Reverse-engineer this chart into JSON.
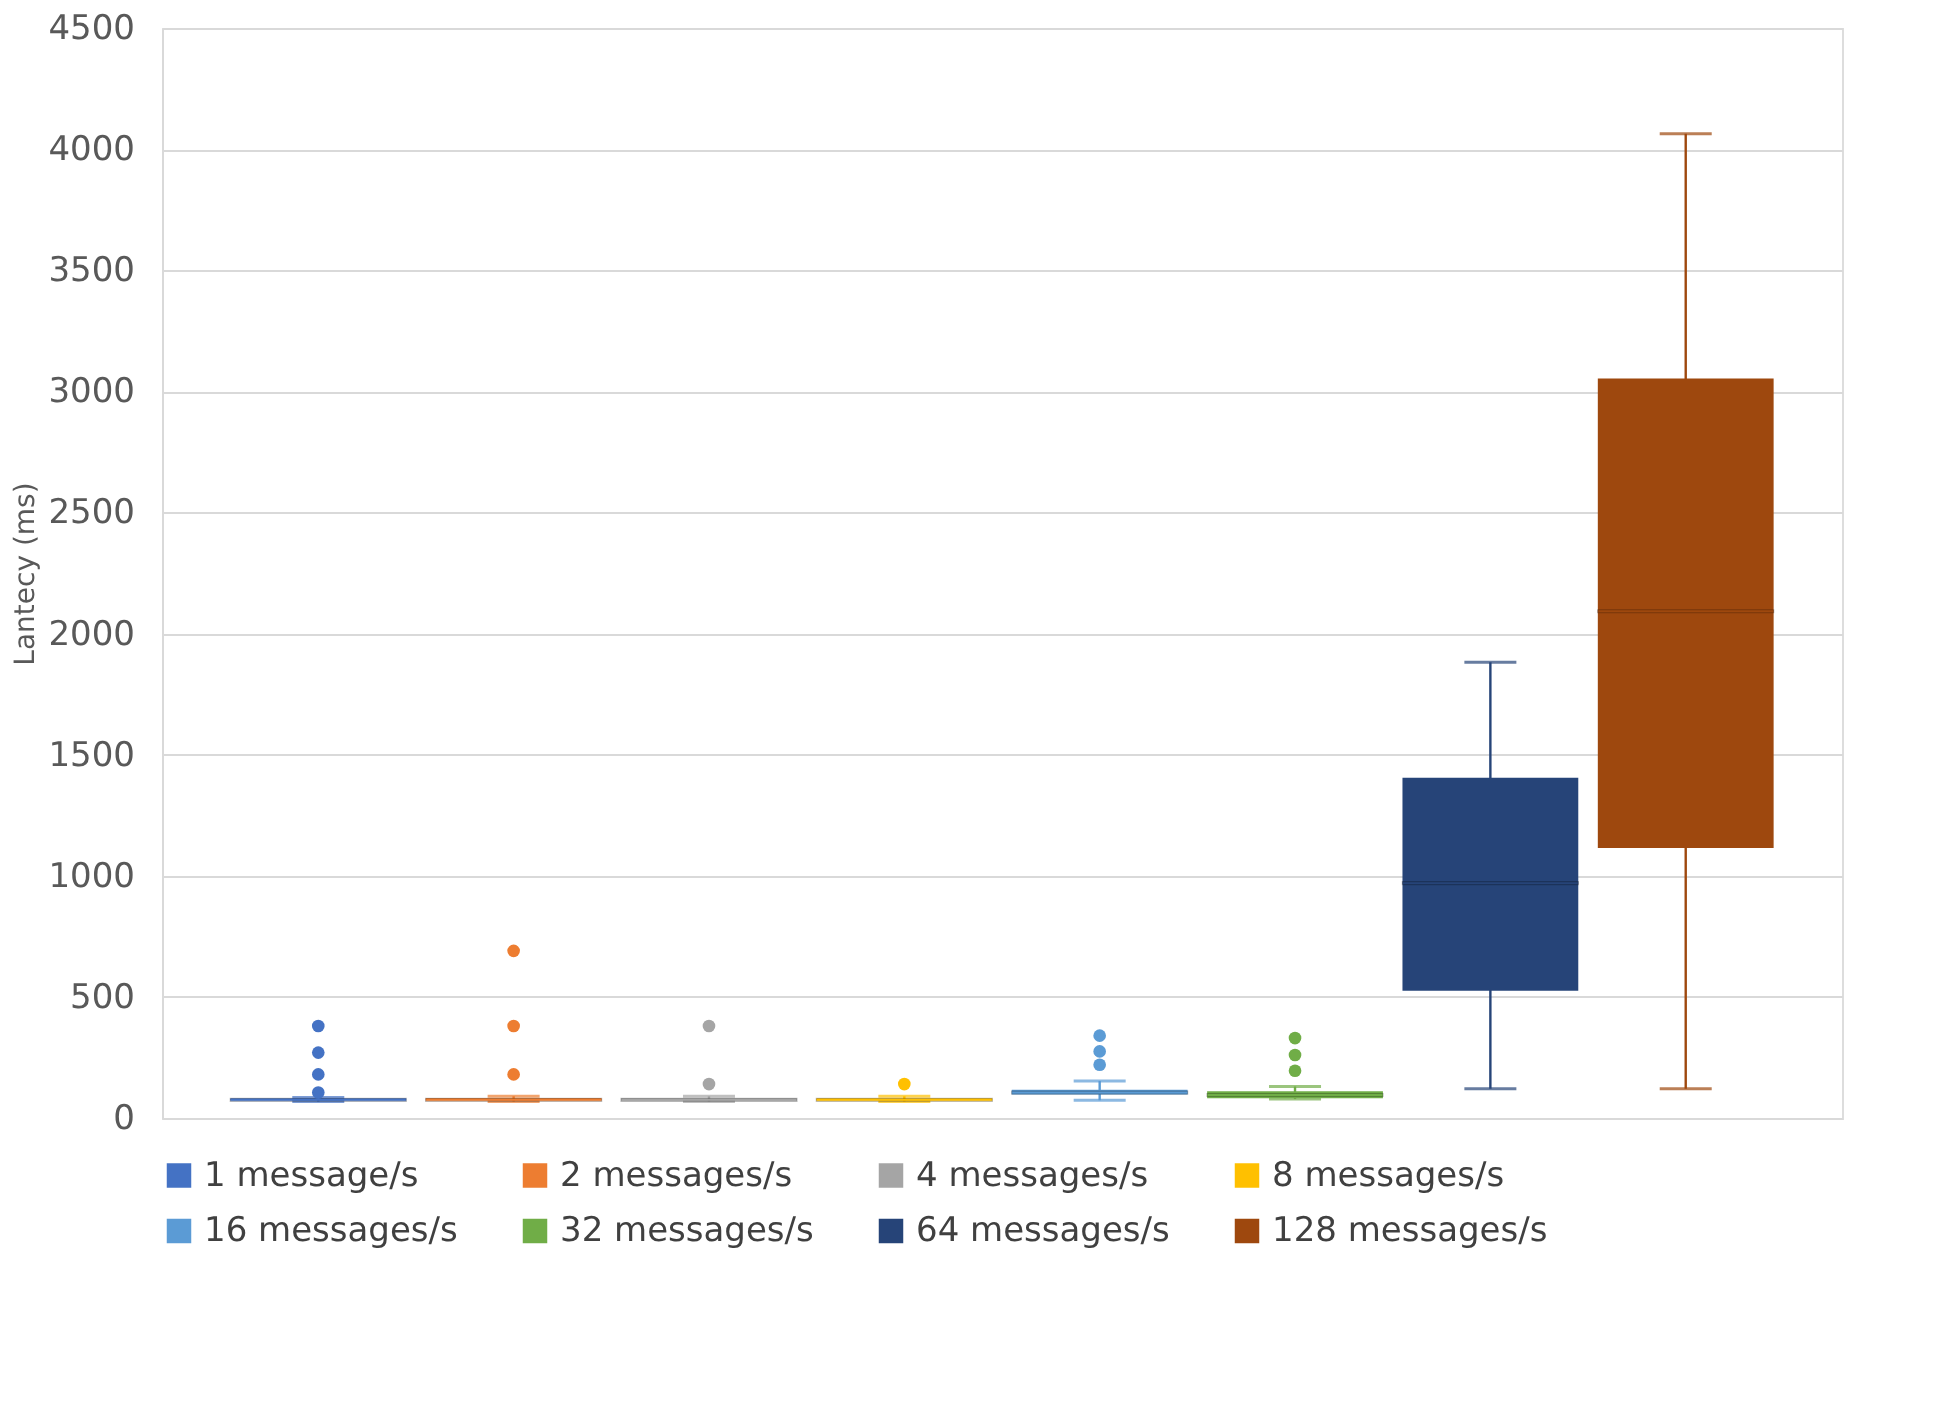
{
  "chart_data": {
    "type": "box",
    "categories": [
      null
    ],
    "ylabel": "Lantecy (ms)",
    "ylim": [
      0,
      4500
    ],
    "yticks": [
      0,
      500,
      1000,
      1500,
      2000,
      2500,
      3000,
      3500,
      4000,
      4500
    ],
    "grid": "y",
    "legend": "bottom",
    "tick_labels": "y",
    "series": [
      {
        "name": "1 message/s",
        "color": "#4472c4",
        "boxes": [
          {
            "low": 68,
            "q1": 72,
            "median": 75,
            "q3": 80,
            "high": 85,
            "outliers": [
              105,
              180,
              270,
              380
            ]
          }
        ]
      },
      {
        "name": "2 messages/s",
        "color": "#ed7d31",
        "boxes": [
          {
            "low": 68,
            "q1": 72,
            "median": 75,
            "q3": 82,
            "high": 90,
            "outliers": [
              180,
              380,
              690
            ]
          }
        ]
      },
      {
        "name": "4 messages/s",
        "color": "#a5a5a5",
        "boxes": [
          {
            "low": 68,
            "q1": 72,
            "median": 75,
            "q3": 80,
            "high": 90,
            "outliers": [
              140,
              380
            ]
          }
        ]
      },
      {
        "name": "8 messages/s",
        "color": "#ffc000",
        "boxes": [
          {
            "low": 68,
            "q1": 72,
            "median": 75,
            "q3": 80,
            "high": 90,
            "outliers": [
              140
            ]
          }
        ]
      },
      {
        "name": "16 messages/s",
        "color": "#5b9bd5",
        "boxes": [
          {
            "low": 73,
            "q1": 97,
            "median": 105,
            "q3": 117,
            "high": 153,
            "outliers": [
              220,
              275,
              340
            ]
          }
        ]
      },
      {
        "name": "32 messages/s",
        "color": "#70ad47",
        "boxes": [
          {
            "low": 78,
            "q1": 82,
            "median": 95,
            "q3": 110,
            "high": 130,
            "outliers": [
              195,
              260,
              330
            ]
          }
        ]
      },
      {
        "name": "64 messages/s",
        "color": "#264478",
        "boxes": [
          {
            "low": 121,
            "q1": 525,
            "median": 970,
            "q3": 1405,
            "high": 1882
          }
        ]
      },
      {
        "name": "128 messages/s",
        "color": "#9e480e",
        "boxes": [
          {
            "low": 121,
            "q1": 1115,
            "median": 2092,
            "q3": 3053,
            "high": 4063
          }
        ]
      }
    ]
  }
}
